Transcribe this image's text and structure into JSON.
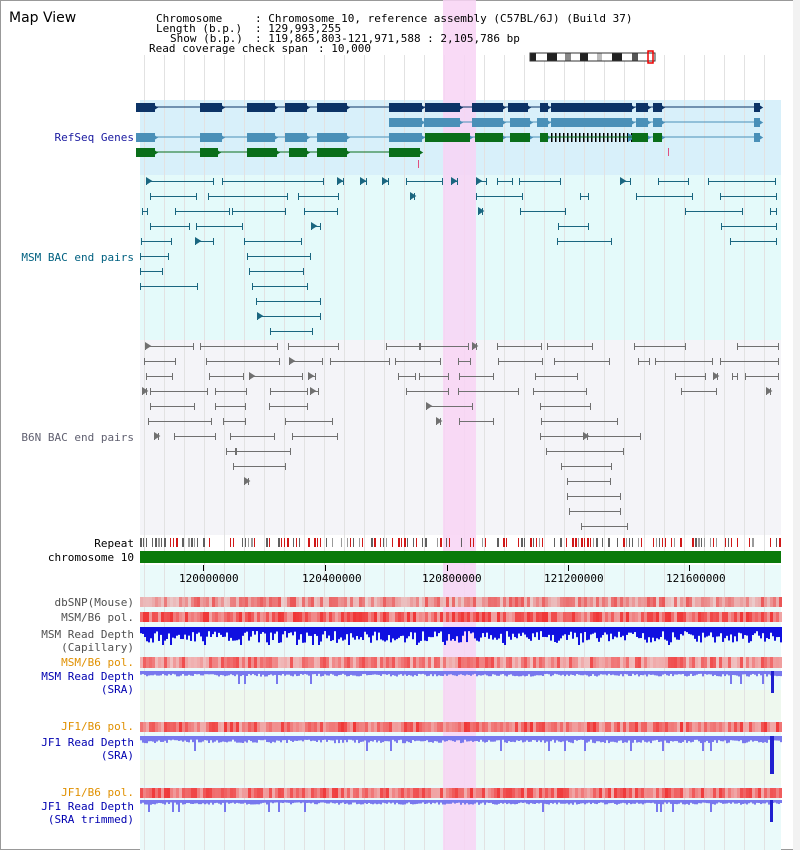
{
  "title": "Map View",
  "header": {
    "chromosome_key": "Chromosome",
    "chromosome_val": ": Chromosome 10, reference assembly (C57BL/6J) (Build 37)",
    "length_key": "Length (b.p.)",
    "length_val": ": 129,993,255",
    "show_key": "Show (b.p.)",
    "show_val": ": 119,865,803-121,971,588 : 2,105,786 bp",
    "coverage_key": "Read coverage check span",
    "coverage_val": ": 10,000"
  },
  "tracks": {
    "refseq": "RefSeq Genes",
    "msm_bac": "MSM BAC end pairs",
    "b6n_bac": "B6N BAC end pairs",
    "repeat": "Repeat",
    "chromosome": "chromosome 10",
    "dbsnp": "dbSNP(Mouse)",
    "msm_b6_pol_1": "MSM/B6 pol.",
    "msm_read_depth_cap_1": "MSM Read Depth",
    "msm_read_depth_cap_2": "(Capillary)",
    "msm_b6_pol_2": "MSM/B6 pol.",
    "msm_read_depth_sra_1": "MSM Read Depth",
    "msm_read_depth_sra_2": "(SRA)",
    "jf1_b6_pol_1": "JF1/B6 pol.",
    "jf1_read_depth_sra_1": "JF1 Read Depth",
    "jf1_read_depth_sra_2": "(SRA)",
    "jf1_b6_pol_2": "JF1/B6 pol.",
    "jf1_read_depth_tr_1": "JF1 Read Depth",
    "jf1_read_depth_tr_2": "(SRA trimmed)"
  },
  "axis": {
    "ticks": [
      "120000000",
      "120400000",
      "120800000",
      "121200000",
      "121600000"
    ]
  },
  "colors": {
    "refseq_bg": "#d8f0fa",
    "msm_bg": "#e4fafa",
    "b6n_bg": "#f4f4f8",
    "highlight": "#f8d4f4",
    "gene_dark": "#0c3366",
    "gene_mid": "#4a90b8",
    "gene_green": "#0a6e1a",
    "msm_line": "#1a6680",
    "b6n_line": "#707070",
    "chrom_green": "#0a7a0a",
    "label_refseq": "#1a1aa0",
    "label_msm": "#006080",
    "label_b6n": "#606070",
    "label_orange": "#e09000",
    "label_blue": "#0000b0",
    "depth_dark": "#1010e0",
    "depth_light": "#7878ee"
  }
}
